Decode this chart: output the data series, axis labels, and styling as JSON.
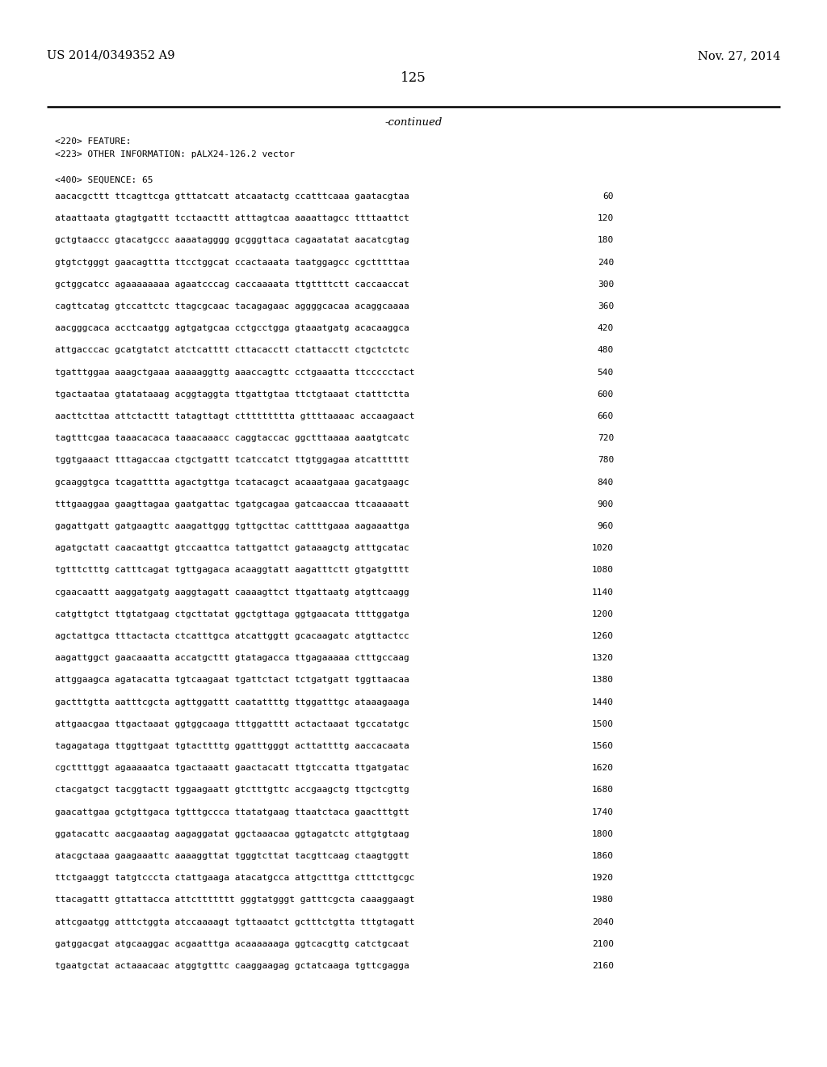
{
  "header_left": "US 2014/0349352 A9",
  "header_right": "Nov. 27, 2014",
  "page_number": "125",
  "continued_text": "-continued",
  "feature_lines": [
    "<220> FEATURE:",
    "<223> OTHER INFORMATION: pALX24-126.2 vector",
    "",
    "<400> SEQUENCE: 65"
  ],
  "sequence_lines": [
    [
      "aacacgcttt ttcagttcga gtttatcatt atcaatactg ccatttcaaa gaatacgtaa",
      "60"
    ],
    [
      "ataattaata gtagtgattt tcctaacttt atttagtcaa aaaattagcc ttttaattct",
      "120"
    ],
    [
      "gctgtaaccc gtacatgccc aaaatagggg gcgggttaca cagaatatat aacatcgtag",
      "180"
    ],
    [
      "gtgtctgggt gaacagttta ttcctggcat ccactaaata taatggagcc cgctttttaa",
      "240"
    ],
    [
      "gctggcatcc agaaaaaaaa agaatcccag caccaaaata ttgttttctt caccaaccat",
      "300"
    ],
    [
      "cagttcatag gtccattctc ttagcgcaac tacagagaac aggggcacaa acaggcaaaa",
      "360"
    ],
    [
      "aacgggcaca acctcaatgg agtgatgcaa cctgcctgga gtaaatgatg acacaaggca",
      "420"
    ],
    [
      "attgacccac gcatgtatct atctcatttt cttacacctt ctattacctt ctgctctctc",
      "480"
    ],
    [
      "tgatttggaa aaagctgaaa aaaaaggttg aaaccagttc cctgaaatta ttccccctact",
      "540"
    ],
    [
      "tgactaataa gtatataaag acggtaggta ttgattgtaa ttctgtaaat ctatttctta",
      "600"
    ],
    [
      "aacttcttaa attctacttt tatagttagt cttttttttta gttttaaaac accaagaact",
      "660"
    ],
    [
      "tagtttcgaa taaacacaca taaacaaacc caggtaccac ggctttaaaa aaatgtcatc",
      "720"
    ],
    [
      "tggtgaaact tttagaccaa ctgctgattt tcatccatct ttgtggagaa atcatttttt",
      "780"
    ],
    [
      "gcaaggtgca tcagatttta agactgttga tcatacagct acaaatgaaa gacatgaagc",
      "840"
    ],
    [
      "tttgaaggaa gaagttagaa gaatgattac tgatgcagaa gatcaaccaa ttcaaaaatt",
      "900"
    ],
    [
      "gagattgatt gatgaagttc aaagattggg tgttgcttac cattttgaaa aagaaattga",
      "960"
    ],
    [
      "agatgctatt caacaattgt gtccaattca tattgattct gataaagctg atttgcatac",
      "1020"
    ],
    [
      "tgtttctttg catttcagat tgttgagaca acaaggtatt aagatttctt gtgatgtttt",
      "1080"
    ],
    [
      "cgaacaattt aaggatgatg aaggtagatt caaaagttct ttgattaatg atgttcaagg",
      "1140"
    ],
    [
      "catgttgtct ttgtatgaag ctgcttatat ggctgttaga ggtgaacata ttttggatga",
      "1200"
    ],
    [
      "agctattgca tttactacta ctcatttgca atcattggtt gcacaagatc atgttactcc",
      "1260"
    ],
    [
      "aagattggct gaacaaatta accatgcttt gtatagacca ttgagaaaaa ctttgccaag",
      "1320"
    ],
    [
      "attggaagca agatacatta tgtcaagaat tgattctact tctgatgatt tggttaacaa",
      "1380"
    ],
    [
      "gactttgtta aatttcgcta agttggattt caatattttg ttggatttgc ataaagaaga",
      "1440"
    ],
    [
      "attgaacgaa ttgactaaat ggtggcaaga tttggatttt actactaaat tgccatatgc",
      "1500"
    ],
    [
      "tagagataga ttggttgaat tgtacttttg ggatttgggt acttattttg aaccacaata",
      "1560"
    ],
    [
      "cgcttttggt agaaaaatca tgactaaatt gaactacatt ttgtccatta ttgatgatac",
      "1620"
    ],
    [
      "ctacgatgct tacggtactt tggaagaatt gtctttgttc accgaagctg ttgctcgttg",
      "1680"
    ],
    [
      "gaacattgaa gctgttgaca tgtttgccca ttatatgaag ttaatctaca gaactttgtt",
      "1740"
    ],
    [
      "ggatacattc aacgaaatag aagaggatat ggctaaacaa ggtagatctc attgtgtaag",
      "1800"
    ],
    [
      "atacgctaaa gaagaaattc aaaaggttat tgggtcttat tacgttcaag ctaagtggtt",
      "1860"
    ],
    [
      "ttctgaaggt tatgtcccta ctattgaaga atacatgcca attgctttga ctttcttgcgc",
      "1920"
    ],
    [
      "ttacagattt gttattacca attcttttttt gggtatgggt gatttcgcta caaaggaagt",
      "1980"
    ],
    [
      "attcgaatgg atttctggta atccaaaagt tgttaaatct gctttctgtta tttgtagatt",
      "2040"
    ],
    [
      "gatggacgat atgcaaggac acgaatttga acaaaaaaga ggtcacgttg catctgcaat",
      "2100"
    ],
    [
      "tgaatgctat actaaacaac atggtgtttc caaggaagag gctatcaaga tgttcgagga",
      "2160"
    ]
  ],
  "background_color": "#ffffff",
  "text_color": "#000000"
}
